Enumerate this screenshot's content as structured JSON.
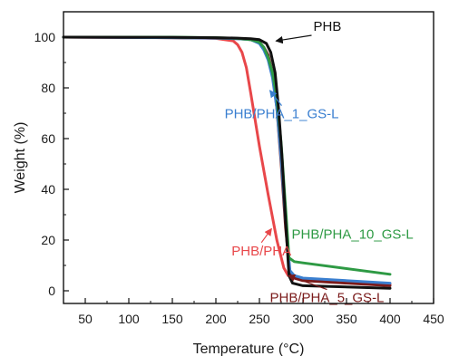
{
  "chart_data": {
    "type": "line",
    "title": "",
    "xlabel": "Temperature (°C)",
    "ylabel": "Weight (%)",
    "xlim": [
      25,
      450
    ],
    "ylim": [
      -5,
      110
    ],
    "xticks": [
      50,
      100,
      150,
      200,
      250,
      300,
      350,
      400,
      450
    ],
    "yticks": [
      0,
      20,
      40,
      60,
      80,
      100
    ],
    "grid": false,
    "legend": "none",
    "series": [
      {
        "name": "PHB/PHA",
        "color": "#e8474a",
        "x": [
          25,
          150,
          200,
          220,
          225,
          230,
          235,
          240,
          250,
          260,
          270,
          278,
          283,
          290,
          300,
          400
        ],
        "y": [
          100,
          99.8,
          99.5,
          98.5,
          97,
          94,
          88,
          78,
          57,
          38,
          20,
          9,
          6,
          5.5,
          4.5,
          2.5
        ]
      },
      {
        "name": "PHB/PHA_5_GS-L",
        "color": "#7a1a1a",
        "x": [
          25,
          150,
          200,
          225,
          240,
          250,
          255,
          260,
          265,
          270,
          275,
          280,
          285,
          290,
          300,
          400
        ],
        "y": [
          100,
          99.8,
          99.6,
          99.4,
          99,
          98,
          96,
          93,
          86,
          72,
          50,
          25,
          7,
          5,
          4,
          2
        ]
      },
      {
        "name": "PHB/PHA_1_GS-L",
        "color": "#3a7fd0",
        "x": [
          25,
          150,
          200,
          225,
          240,
          250,
          255,
          260,
          265,
          270,
          275,
          280,
          285,
          290,
          300,
          400
        ],
        "y": [
          100,
          99.8,
          99.6,
          99.4,
          99,
          97.5,
          95,
          91,
          84,
          72,
          52,
          28,
          8,
          6,
          5,
          3
        ]
      },
      {
        "name": "PHB/PHA_10_GS-L",
        "color": "#2e9a44",
        "x": [
          25,
          150,
          200,
          225,
          240,
          250,
          255,
          260,
          265,
          270,
          275,
          280,
          284,
          290,
          300,
          400
        ],
        "y": [
          100,
          100,
          99.8,
          99.5,
          99,
          98,
          96,
          92,
          86,
          76,
          58,
          33,
          13,
          11.5,
          11,
          6.5
        ]
      },
      {
        "name": "PHB",
        "color": "#111111",
        "x": [
          25,
          150,
          200,
          225,
          240,
          250,
          258,
          263,
          268,
          272,
          276,
          280,
          284,
          288,
          300,
          400
        ],
        "y": [
          100,
          99.9,
          99.8,
          99.6,
          99.4,
          99,
          97.5,
          94,
          86,
          72,
          52,
          28,
          6,
          3,
          2,
          1
        ]
      }
    ],
    "annotations": [
      {
        "text": "PHB",
        "series": "PHB",
        "color": "#111111",
        "label_at": [
          312,
          102.5
        ],
        "arrow_to": [
          269,
          98.5
        ]
      },
      {
        "text": "PHB/PHA_1_GS-L",
        "series": "PHB/PHA_1_GS-L",
        "color": "#3a7fd0",
        "label_at": [
          210,
          68
        ],
        "arrow_to": [
          262,
          79
        ]
      },
      {
        "text": "PHB/PHA",
        "series": "PHB/PHA",
        "color": "#e8474a",
        "label_at": [
          218,
          14
        ],
        "arrow_to": [
          264,
          24.5
        ]
      },
      {
        "text": "PHB/PHA_10_GS-L",
        "series": "PHB/PHA_10_GS-L",
        "color": "#2e9a44",
        "label_at": [
          287,
          20.5
        ],
        "arrow_to": null
      },
      {
        "text": "PHB/PHA_5_GS-L",
        "series": "PHB/PHA_5_GS-L",
        "color": "#7a1a1a",
        "label_at": [
          262,
          -4.5
        ],
        "arrow_to": [
          283,
          6
        ]
      }
    ]
  }
}
